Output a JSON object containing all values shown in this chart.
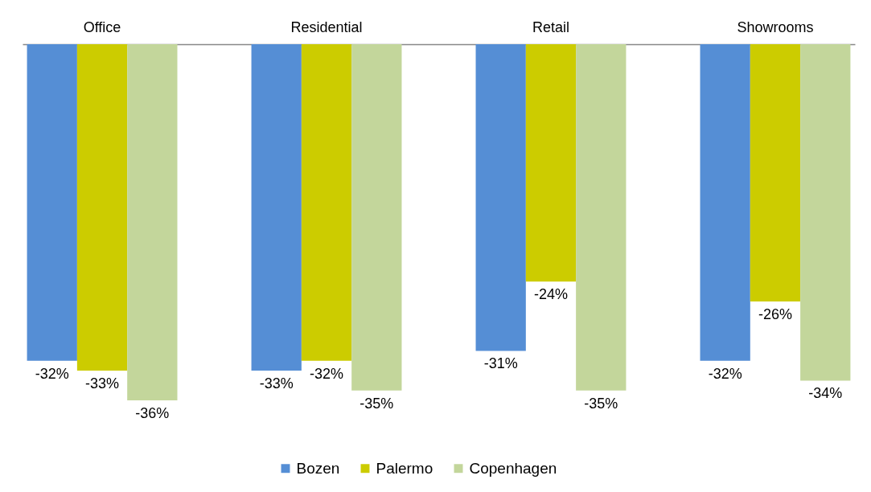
{
  "chart_data": {
    "type": "bar",
    "categories": [
      "Office",
      "Residential",
      "Retail",
      "Showrooms"
    ],
    "series": [
      {
        "name": "Bozen",
        "color": "#558ed5",
        "values": [
          -32,
          -33,
          -31,
          -32
        ],
        "value_labels": [
          "-32%",
          "-33%",
          "-31%",
          "-32%"
        ]
      },
      {
        "name": "Palermo",
        "color": "#cccc00",
        "values": [
          -33,
          -32,
          -24,
          -26
        ],
        "value_labels": [
          "-33%",
          "-32%",
          "-24%",
          "-26%"
        ]
      },
      {
        "name": "Copenhagen",
        "color": "#c3d69b",
        "values": [
          -36,
          -35,
          -35,
          -34
        ],
        "value_labels": [
          "-36%",
          "-35%",
          "-35%",
          "-34%"
        ]
      }
    ],
    "legend": "bottom",
    "grid": false
  }
}
